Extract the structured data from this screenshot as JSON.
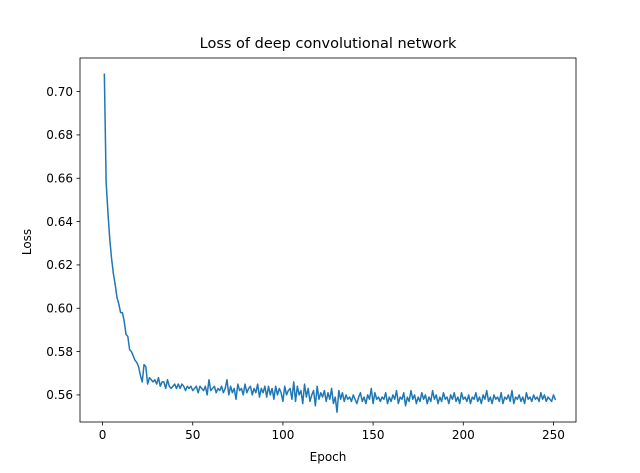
{
  "chart_data": {
    "type": "line",
    "title": "Loss of deep convolutional network",
    "xlabel": "Epoch",
    "ylabel": "Loss",
    "xlim": [
      -12.5,
      262.5
    ],
    "ylim": [
      0.5475,
      0.7155
    ],
    "xticks": [
      0,
      50,
      100,
      150,
      200,
      250
    ],
    "yticks": [
      0.56,
      0.58,
      0.6,
      0.62,
      0.64,
      0.66,
      0.68,
      0.7
    ],
    "ytick_labels": [
      "0.56",
      "0.58",
      "0.60",
      "0.62",
      "0.64",
      "0.66",
      "0.68",
      "0.70"
    ],
    "grid": false,
    "legend": "none",
    "series": [
      {
        "color": "#1f77b4",
        "x_start": 1,
        "x_step": 1,
        "values": [
          0.708,
          0.658,
          0.644,
          0.632,
          0.623,
          0.616,
          0.611,
          0.605,
          0.602,
          0.598,
          0.598,
          0.594,
          0.588,
          0.587,
          0.581,
          0.58,
          0.578,
          0.576,
          0.575,
          0.573,
          0.569,
          0.566,
          0.574,
          0.573,
          0.565,
          0.568,
          0.567,
          0.566,
          0.567,
          0.565,
          0.568,
          0.564,
          0.566,
          0.566,
          0.563,
          0.567,
          0.564,
          0.563,
          0.564,
          0.565,
          0.563,
          0.565,
          0.563,
          0.565,
          0.564,
          0.562,
          0.564,
          0.563,
          0.564,
          0.562,
          0.563,
          0.564,
          0.561,
          0.564,
          0.563,
          0.562,
          0.564,
          0.56,
          0.567,
          0.562,
          0.563,
          0.564,
          0.561,
          0.563,
          0.562,
          0.564,
          0.561,
          0.563,
          0.567,
          0.56,
          0.564,
          0.561,
          0.563,
          0.558,
          0.565,
          0.562,
          0.563,
          0.56,
          0.565,
          0.561,
          0.563,
          0.564,
          0.56,
          0.563,
          0.561,
          0.565,
          0.559,
          0.563,
          0.561,
          0.564,
          0.559,
          0.564,
          0.56,
          0.563,
          0.558,
          0.564,
          0.56,
          0.563,
          0.561,
          0.557,
          0.564,
          0.56,
          0.562,
          0.563,
          0.558,
          0.566,
          0.557,
          0.564,
          0.56,
          0.562,
          0.556,
          0.565,
          0.559,
          0.563,
          0.557,
          0.56,
          0.562,
          0.555,
          0.564,
          0.558,
          0.561,
          0.559,
          0.562,
          0.557,
          0.561,
          0.558,
          0.563,
          0.556,
          0.559,
          0.552,
          0.562,
          0.558,
          0.561,
          0.557,
          0.56,
          0.558,
          0.559,
          0.557,
          0.56,
          0.558,
          0.556,
          0.559,
          0.561,
          0.557,
          0.559,
          0.556,
          0.56,
          0.558,
          0.563,
          0.556,
          0.561,
          0.558,
          0.559,
          0.557,
          0.559,
          0.558,
          0.561,
          0.556,
          0.559,
          0.557,
          0.56,
          0.558,
          0.562,
          0.556,
          0.559,
          0.558,
          0.561,
          0.555,
          0.559,
          0.557,
          0.562,
          0.558,
          0.56,
          0.556,
          0.559,
          0.557,
          0.561,
          0.558,
          0.56,
          0.556,
          0.559,
          0.557,
          0.562,
          0.558,
          0.56,
          0.556,
          0.559,
          0.557,
          0.561,
          0.558,
          0.559,
          0.556,
          0.56,
          0.558,
          0.561,
          0.557,
          0.559,
          0.556,
          0.561,
          0.558,
          0.559,
          0.557,
          0.56,
          0.556,
          0.559,
          0.558,
          0.561,
          0.557,
          0.559,
          0.556,
          0.56,
          0.558,
          0.562,
          0.557,
          0.559,
          0.556,
          0.56,
          0.558,
          0.559,
          0.557,
          0.561,
          0.556,
          0.559,
          0.558,
          0.56,
          0.557,
          0.562,
          0.556,
          0.559,
          0.558,
          0.56,
          0.557,
          0.559,
          0.556,
          0.561,
          0.558,
          0.559,
          0.557,
          0.56,
          0.558,
          0.559,
          0.557,
          0.561,
          0.558,
          0.56,
          0.557,
          0.559,
          0.558,
          0.557,
          0.56,
          0.558
        ]
      }
    ]
  }
}
